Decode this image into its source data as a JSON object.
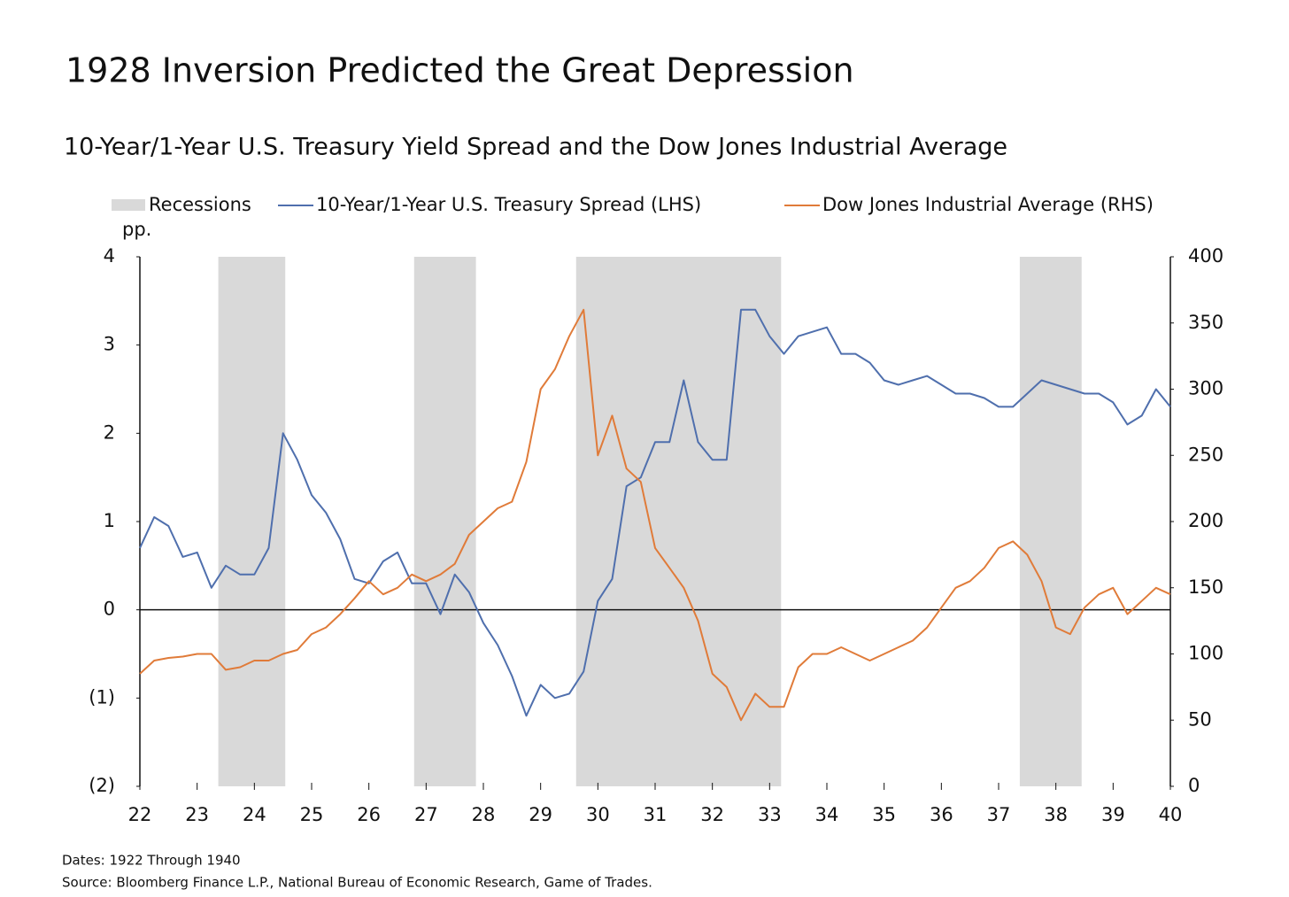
{
  "chart_data": {
    "type": "line",
    "title": "1928 Inversion Predicted the Great Depression",
    "subtitle": "10-Year/1-Year U.S. Treasury Yield Spread and the Dow Jones Industrial Average",
    "y_label": "pp.",
    "notes": [
      "Dates: 1922 Through 1940",
      "Source: Bloomberg Finance L.P., National Bureau of Economic Research, Game of Trades."
    ],
    "recessions": {
      "name": "Recessions",
      "color": "#d9d9d9",
      "periods": [
        {
          "start": 23.37,
          "end": 24.54
        },
        {
          "start": 26.79,
          "end": 27.87
        },
        {
          "start": 29.62,
          "end": 33.2
        },
        {
          "start": 37.37,
          "end": 38.45
        }
      ]
    },
    "x": [
      22,
      22.25,
      22.5,
      22.75,
      23,
      23.25,
      23.5,
      23.75,
      24,
      24.25,
      24.5,
      24.75,
      25,
      25.25,
      25.5,
      25.75,
      26,
      26.25,
      26.5,
      26.75,
      27,
      27.25,
      27.5,
      27.75,
      28,
      28.25,
      28.5,
      28.75,
      29,
      29.25,
      29.5,
      29.75,
      30,
      30.25,
      30.5,
      30.75,
      31,
      31.25,
      31.5,
      31.75,
      32,
      32.25,
      32.5,
      32.75,
      33,
      33.25,
      33.5,
      33.75,
      34,
      34.25,
      34.5,
      34.75,
      35,
      35.25,
      35.5,
      35.75,
      36,
      36.25,
      36.5,
      36.75,
      37,
      37.25,
      37.5,
      37.75,
      38,
      38.25,
      38.5,
      38.75,
      39,
      39.25,
      39.5,
      39.75,
      40
    ],
    "series": [
      {
        "name": "10-Year/1-Year U.S. Treasury Spread (LHS)",
        "color": "#4f6fad",
        "axis": "y",
        "values": [
          0.7,
          1.05,
          0.95,
          0.6,
          0.65,
          0.25,
          0.5,
          0.4,
          0.4,
          0.7,
          2.0,
          1.7,
          1.3,
          1.1,
          0.8,
          0.35,
          0.3,
          0.55,
          0.65,
          0.3,
          0.3,
          -0.05,
          0.4,
          0.2,
          -0.15,
          -0.4,
          -0.75,
          -1.2,
          -0.85,
          -1.0,
          -0.95,
          -0.7,
          0.1,
          0.35,
          1.4,
          1.5,
          1.9,
          1.9,
          2.6,
          1.9,
          1.7,
          1.7,
          3.4,
          3.4,
          3.1,
          2.9,
          3.1,
          3.15,
          3.2,
          2.9,
          2.9,
          2.8,
          2.6,
          2.55,
          2.6,
          2.65,
          2.55,
          2.45,
          2.45,
          2.4,
          2.3,
          2.3,
          2.45,
          2.6,
          2.55,
          2.5,
          2.45,
          2.45,
          2.35,
          2.1,
          2.2,
          2.5,
          2.3
        ]
      },
      {
        "name": "Dow Jones Industrial Average (RHS)",
        "color": "#e07b39",
        "axis": "y2",
        "values": [
          85,
          95,
          97,
          98,
          100,
          100,
          88,
          90,
          95,
          95,
          100,
          103,
          115,
          120,
          130,
          142,
          155,
          145,
          150,
          160,
          155,
          160,
          168,
          190,
          200,
          210,
          215,
          245,
          300,
          315,
          340,
          360,
          250,
          280,
          240,
          230,
          180,
          165,
          150,
          125,
          85,
          75,
          50,
          70,
          60,
          60,
          90,
          100,
          100,
          105,
          100,
          95,
          100,
          105,
          110,
          120,
          135,
          150,
          155,
          165,
          180,
          185,
          175,
          155,
          120,
          115,
          135,
          145,
          150,
          130,
          140,
          150,
          145
        ]
      }
    ],
    "xlim": [
      22,
      40
    ],
    "xticks": [
      22,
      23,
      24,
      25,
      26,
      27,
      28,
      29,
      30,
      31,
      32,
      33,
      34,
      35,
      36,
      37,
      38,
      39,
      40
    ],
    "ylim": [
      -2,
      4
    ],
    "yticks": [
      {
        "value": -2,
        "label": "(2)"
      },
      {
        "value": -1,
        "label": "(1)"
      },
      0,
      1,
      2,
      3,
      4
    ],
    "y2lim": [
      0,
      400
    ],
    "y2ticks": [
      0,
      50,
      100,
      150,
      200,
      250,
      300,
      350,
      400
    ]
  }
}
